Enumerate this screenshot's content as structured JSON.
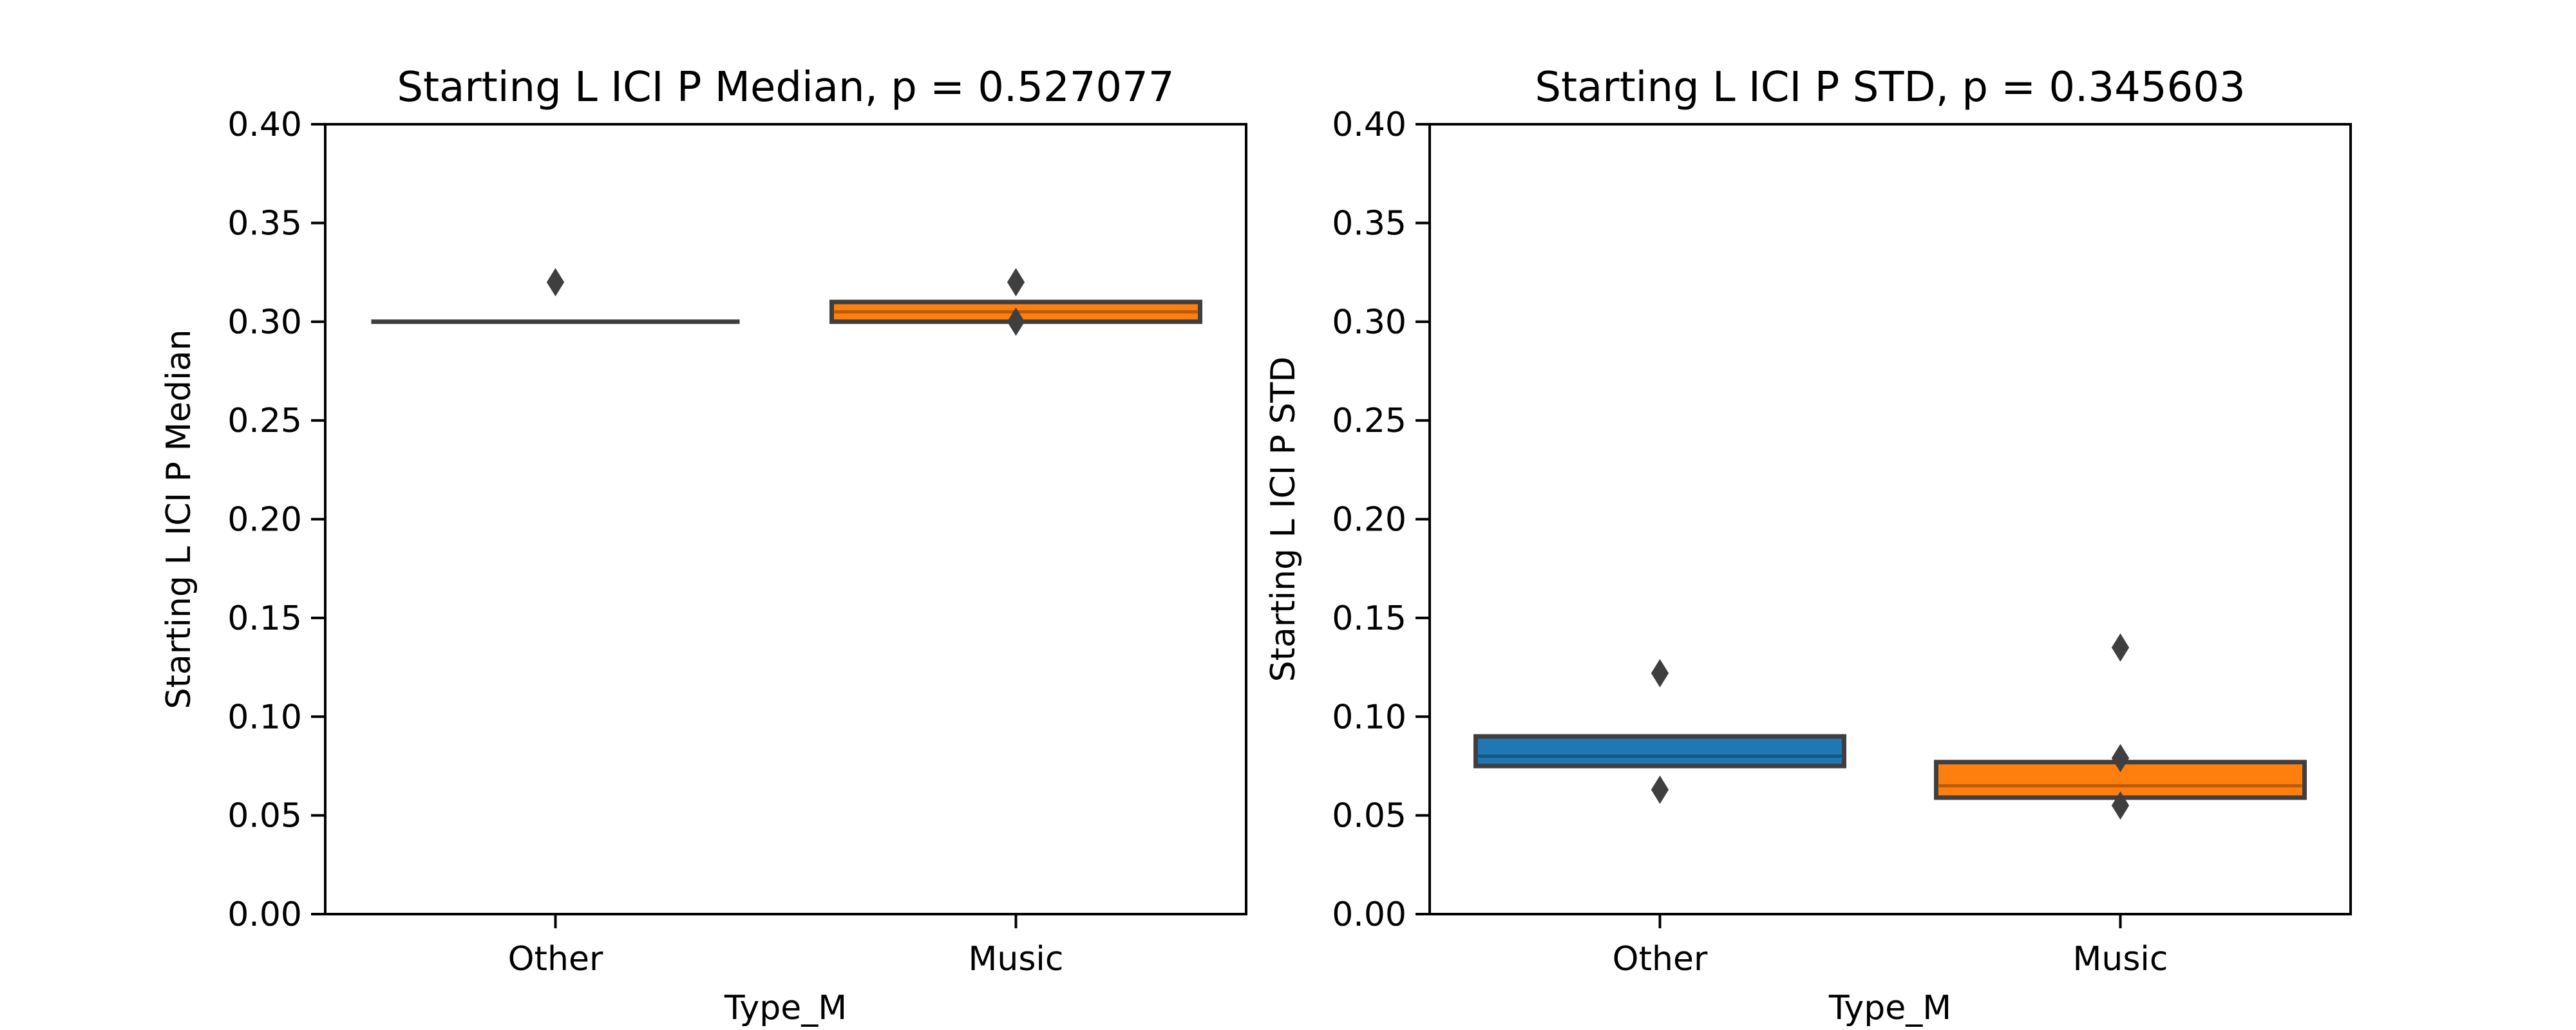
{
  "chart_data": [
    {
      "type": "boxen",
      "title": "Starting L ICI P Median, p = 0.527077",
      "xlabel": "Type_M",
      "ylabel": "Starting L ICI P Median",
      "ylim": [
        0,
        0.4
      ],
      "yticks": [
        "0.00",
        "0.05",
        "0.10",
        "0.15",
        "0.20",
        "0.25",
        "0.30",
        "0.35",
        "0.40"
      ],
      "categories": [
        "Other",
        "Music"
      ],
      "grid": false,
      "legend": "none",
      "boxes": [
        {
          "category": "Other",
          "color": "#1f77b4",
          "low": 0.3,
          "high": 0.3,
          "median": 0.3,
          "outliers": [
            0.32
          ]
        },
        {
          "category": "Music",
          "color": "#ff7f0e",
          "low": 0.3,
          "high": 0.31,
          "median": 0.305,
          "outliers": [
            0.32,
            0.3
          ]
        }
      ]
    },
    {
      "type": "boxen",
      "title": "Starting L ICI P STD, p = 0.345603",
      "xlabel": "Type_M",
      "ylabel": "Starting L ICI P STD",
      "ylim": [
        0,
        0.4
      ],
      "yticks": [
        "0.00",
        "0.05",
        "0.10",
        "0.15",
        "0.20",
        "0.25",
        "0.30",
        "0.35",
        "0.40"
      ],
      "categories": [
        "Other",
        "Music"
      ],
      "grid": false,
      "legend": "none",
      "boxes": [
        {
          "category": "Other",
          "color": "#1f77b4",
          "low": 0.075,
          "high": 0.09,
          "median": 0.08,
          "outliers": [
            0.122,
            0.063
          ]
        },
        {
          "category": "Music",
          "color": "#ff7f0e",
          "low": 0.059,
          "high": 0.077,
          "median": 0.065,
          "outliers": [
            0.135,
            0.079,
            0.055
          ]
        }
      ]
    }
  ]
}
